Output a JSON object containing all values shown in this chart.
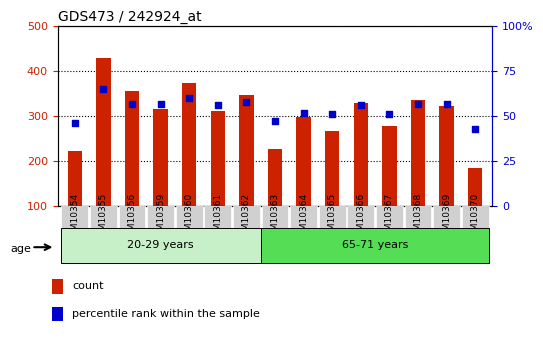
{
  "title": "GDS473 / 242924_at",
  "categories": [
    "GSM10354",
    "GSM10355",
    "GSM10356",
    "GSM10359",
    "GSM10360",
    "GSM10361",
    "GSM10362",
    "GSM10363",
    "GSM10364",
    "GSM10365",
    "GSM10366",
    "GSM10367",
    "GSM10368",
    "GSM10369",
    "GSM10370"
  ],
  "counts": [
    222,
    430,
    357,
    315,
    373,
    312,
    347,
    226,
    298,
    267,
    330,
    277,
    335,
    322,
    185
  ],
  "percentiles": [
    46,
    65,
    57,
    57,
    60,
    56,
    58,
    47,
    52,
    51,
    56,
    51,
    57,
    57,
    43
  ],
  "group1_label": "20-29 years",
  "group2_label": "65-71 years",
  "group1_indices": [
    0,
    1,
    2,
    3,
    4,
    5,
    6
  ],
  "group2_indices": [
    7,
    8,
    9,
    10,
    11,
    12,
    13,
    14
  ],
  "bar_color": "#cc2200",
  "dot_color": "#0000cc",
  "group1_bg": "#c8f0c8",
  "group2_bg": "#55dd55",
  "tick_bg": "#d0d0d0",
  "ylim_left": [
    100,
    500
  ],
  "ylim_right": [
    0,
    100
  ],
  "yticks_left": [
    100,
    200,
    300,
    400,
    500
  ],
  "yticks_right": [
    0,
    25,
    50,
    75,
    100
  ],
  "legend_count": "count",
  "legend_pct": "percentile rank within the sample",
  "ylabel_left_color": "#cc2200",
  "ylabel_right_color": "#0000cc",
  "age_label": "age"
}
